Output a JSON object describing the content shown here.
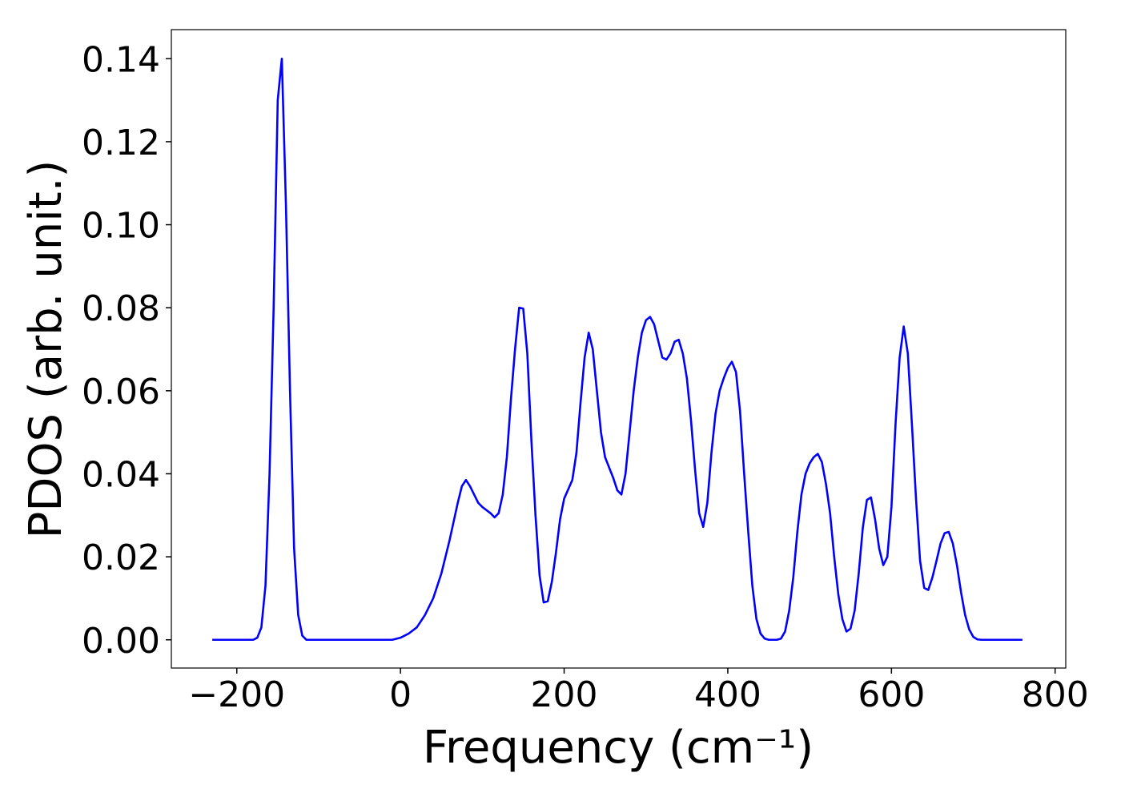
{
  "chart_data": {
    "type": "line",
    "xlabel": "Frequency (cm⁻¹)",
    "ylabel": "PDOS (arb. unit.)",
    "xlim": [
      -280,
      813
    ],
    "ylim": [
      -0.0068,
      0.147
    ],
    "xticks": [
      {
        "value": -200,
        "label": "−200"
      },
      0,
      200,
      400,
      600,
      800
    ],
    "yticks": [
      {
        "value": 0,
        "label": "0.00"
      },
      {
        "value": 0.02,
        "label": "0.02"
      },
      {
        "value": 0.04,
        "label": "0.04"
      },
      {
        "value": 0.06,
        "label": "0.06"
      },
      {
        "value": 0.08,
        "label": "0.08"
      },
      {
        "value": 0.1,
        "label": "0.10"
      },
      {
        "value": 0.12,
        "label": "0.12"
      },
      {
        "value": 0.14,
        "label": "0.14"
      }
    ],
    "grid": false,
    "series": [
      {
        "color": "#0000ff",
        "x": [
          -230,
          -180,
          -175,
          -170,
          -165,
          -160,
          -155,
          -150,
          -145,
          -140,
          -135,
          -130,
          -125,
          -120,
          -115,
          -10,
          0,
          10,
          20,
          30,
          40,
          50,
          60,
          70,
          75,
          80,
          85,
          90,
          95,
          100,
          110,
          115,
          120,
          125,
          130,
          135,
          140,
          145,
          150,
          155,
          160,
          165,
          170,
          175,
          180,
          185,
          190,
          195,
          200,
          210,
          215,
          220,
          225,
          230,
          235,
          240,
          245,
          250,
          260,
          265,
          270,
          275,
          280,
          285,
          290,
          295,
          300,
          305,
          310,
          315,
          320,
          325,
          330,
          335,
          340,
          345,
          350,
          355,
          360,
          365,
          370,
          375,
          380,
          385,
          390,
          395,
          400,
          405,
          410,
          415,
          420,
          425,
          430,
          435,
          440,
          445,
          450,
          460,
          465,
          470,
          475,
          480,
          485,
          490,
          495,
          500,
          505,
          510,
          515,
          520,
          525,
          530,
          535,
          540,
          545,
          550,
          555,
          560,
          565,
          570,
          575,
          580,
          585,
          590,
          595,
          600,
          605,
          610,
          615,
          620,
          625,
          630,
          635,
          640,
          645,
          650,
          655,
          660,
          665,
          670,
          675,
          680,
          685,
          690,
          695,
          700,
          705,
          710,
          760
        ],
        "values": [
          0,
          0,
          0.0005,
          0.003,
          0.013,
          0.04,
          0.08,
          0.13,
          0.14,
          0.105,
          0.06,
          0.022,
          0.006,
          0.001,
          0,
          0,
          0.0005,
          0.0015,
          0.003,
          0.006,
          0.01,
          0.016,
          0.024,
          0.033,
          0.037,
          0.0385,
          0.037,
          0.035,
          0.033,
          0.032,
          0.0305,
          0.0295,
          0.0305,
          0.035,
          0.044,
          0.058,
          0.07,
          0.08,
          0.0798,
          0.069,
          0.048,
          0.03,
          0.0155,
          0.009,
          0.0093,
          0.014,
          0.021,
          0.029,
          0.034,
          0.0385,
          0.045,
          0.057,
          0.068,
          0.074,
          0.07,
          0.06,
          0.05,
          0.044,
          0.039,
          0.036,
          0.035,
          0.04,
          0.05,
          0.06,
          0.068,
          0.074,
          0.077,
          0.0778,
          0.076,
          0.072,
          0.068,
          0.0675,
          0.069,
          0.0718,
          0.0723,
          0.069,
          0.063,
          0.053,
          0.041,
          0.0305,
          0.0272,
          0.033,
          0.045,
          0.0545,
          0.06,
          0.063,
          0.0655,
          0.067,
          0.0645,
          0.055,
          0.04,
          0.026,
          0.013,
          0.005,
          0.0015,
          0.0003,
          0,
          0,
          0.0003,
          0.002,
          0.007,
          0.015,
          0.026,
          0.035,
          0.04,
          0.0425,
          0.044,
          0.0448,
          0.0428,
          0.0375,
          0.0305,
          0.02,
          0.011,
          0.005,
          0.002,
          0.0027,
          0.007,
          0.016,
          0.027,
          0.0337,
          0.0343,
          0.029,
          0.022,
          0.018,
          0.02,
          0.032,
          0.052,
          0.068,
          0.0755,
          0.069,
          0.052,
          0.034,
          0.019,
          0.0125,
          0.012,
          0.015,
          0.019,
          0.0232,
          0.0257,
          0.026,
          0.0232,
          0.018,
          0.0115,
          0.006,
          0.0025,
          0.0007,
          0.0001,
          0,
          0
        ]
      }
    ]
  }
}
